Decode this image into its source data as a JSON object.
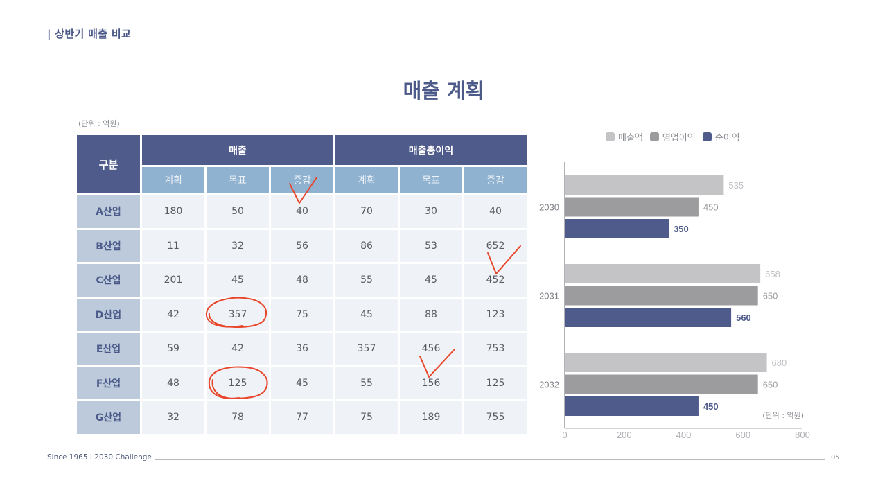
{
  "header": {
    "section_title": "| 상반기 매출 비교",
    "main_title": "매출 계획"
  },
  "table": {
    "unit": "(단위 : 억원)",
    "corner_label": "구분",
    "groups": [
      {
        "label": "매출",
        "sub": [
          "계획",
          "목표",
          "증감"
        ]
      },
      {
        "label": "매출총이익",
        "sub": [
          "계획",
          "목표",
          "증감"
        ]
      }
    ],
    "rows": [
      {
        "label": "A산업",
        "values": [
          "180",
          "50",
          "40",
          "70",
          "30",
          "40"
        ]
      },
      {
        "label": "B산업",
        "values": [
          "11",
          "32",
          "56",
          "86",
          "53",
          "652"
        ]
      },
      {
        "label": "C산업",
        "values": [
          "201",
          "45",
          "48",
          "55",
          "45",
          "452"
        ]
      },
      {
        "label": "D산업",
        "values": [
          "42",
          "357",
          "75",
          "45",
          "88",
          "123"
        ]
      },
      {
        "label": "E산업",
        "values": [
          "59",
          "42",
          "36",
          "357",
          "456",
          "753"
        ]
      },
      {
        "label": "F산업",
        "values": [
          "48",
          "125",
          "45",
          "55",
          "156",
          "125"
        ]
      },
      {
        "label": "G산업",
        "values": [
          "32",
          "78",
          "77",
          "75",
          "189",
          "755"
        ]
      }
    ],
    "annotations": [
      {
        "type": "check",
        "near": "A산업 매출 증감"
      },
      {
        "type": "check",
        "near": "B/C산업 매출총이익 증감"
      },
      {
        "type": "circle",
        "near": "D산업 매출 목표"
      },
      {
        "type": "check",
        "near": "E/F산업 매출총이익 목표"
      },
      {
        "type": "circle",
        "near": "F산업 매출 목표"
      }
    ]
  },
  "colors": {
    "primary": "#4f5b8b",
    "sub_header": "#8fb2d0",
    "row_header": "#bccadb",
    "cell": "#eff2f6",
    "annotation_red": "#e8452a",
    "series_sales": "#c4c4c6",
    "series_operating": "#9c9c9e",
    "series_net": "#4f5b8b"
  },
  "chart_data": {
    "type": "bar",
    "orientation": "horizontal",
    "title": "",
    "categories": [
      "2030",
      "2031",
      "2032"
    ],
    "series": [
      {
        "name": "매출액",
        "values": [
          535,
          658,
          680
        ],
        "color": "#c4c4c6"
      },
      {
        "name": "영업이익",
        "values": [
          450,
          650,
          650
        ],
        "color": "#9c9c9e"
      },
      {
        "name": "순이익",
        "values": [
          350,
          560,
          450
        ],
        "color": "#4f5b8b"
      }
    ],
    "xlabel": "",
    "ylabel": "",
    "xlim": [
      0,
      800
    ],
    "x_ticks": [
      "0",
      "200",
      "400",
      "600",
      "800"
    ],
    "grid": false,
    "legend_position": "top",
    "annotation": "(단위 : 억원)"
  },
  "footer": {
    "left": "Since 1965  I   2030 Challenge",
    "page": "05"
  }
}
